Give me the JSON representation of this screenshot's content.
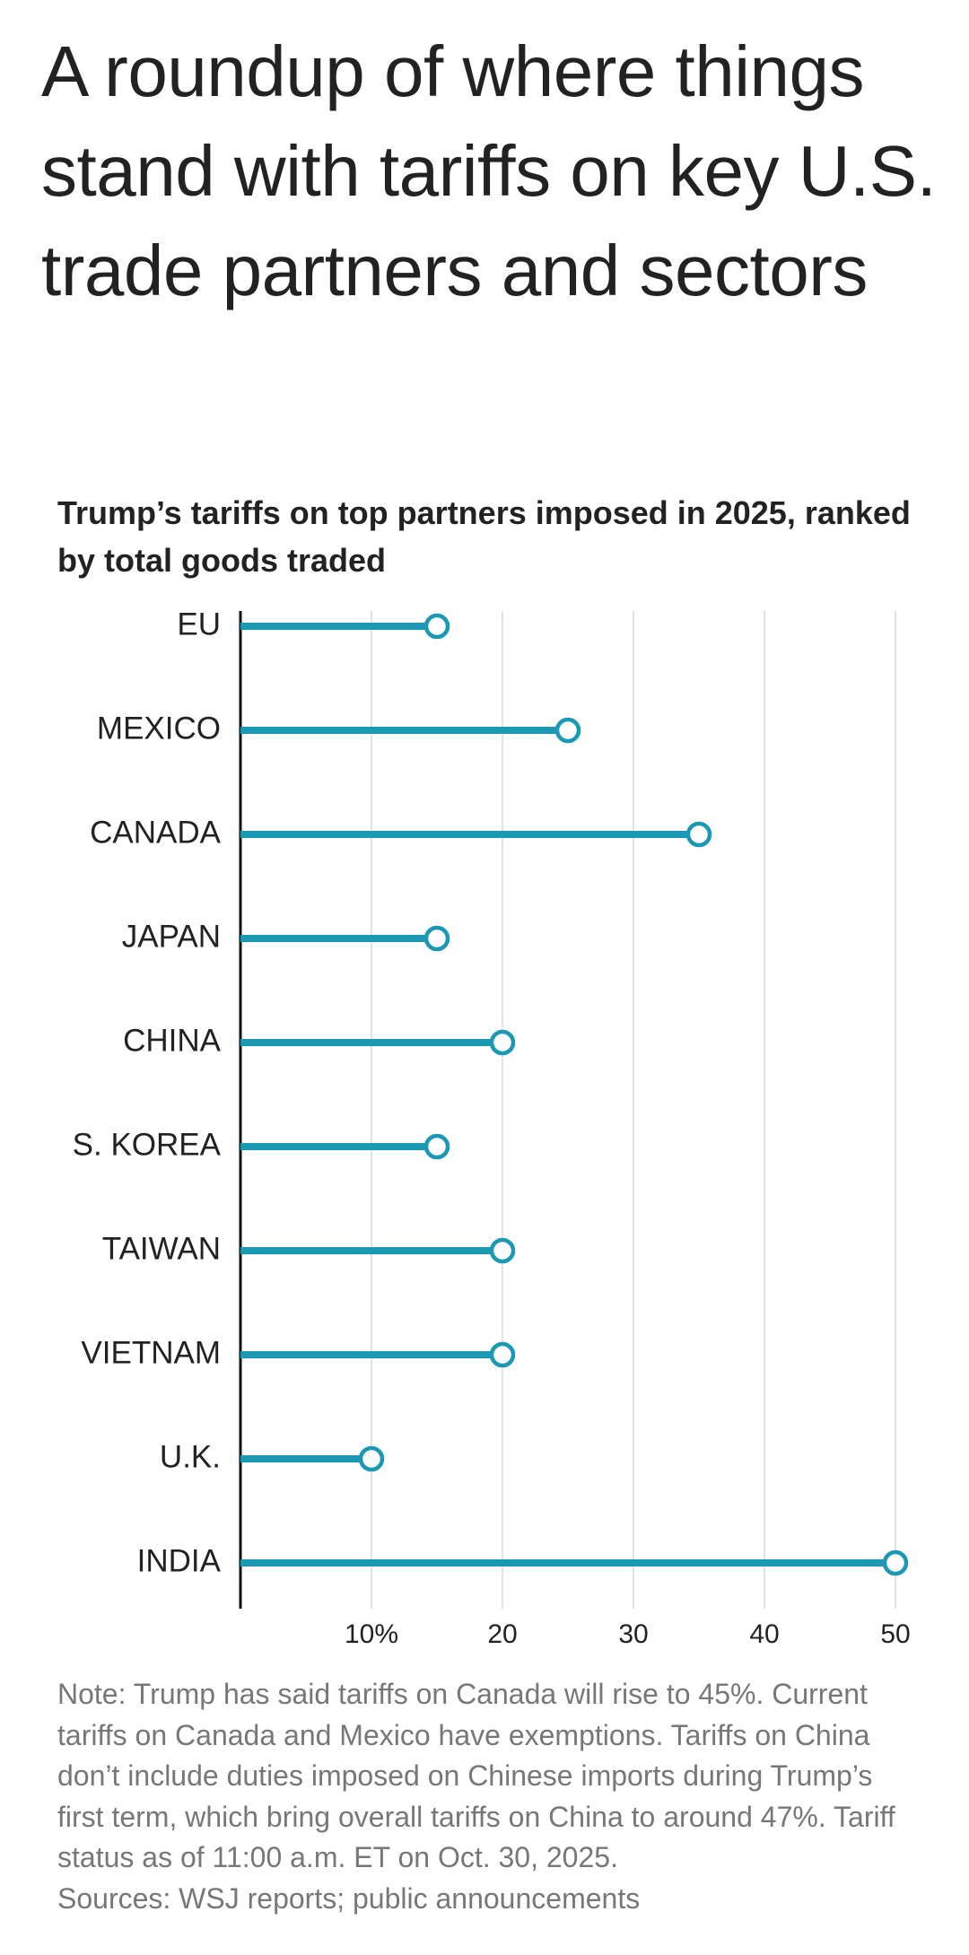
{
  "title": "A roundup of where things stand with tariffs on key U.S. trade partners and sectors",
  "chart_data": {
    "type": "lollipop",
    "orientation": "horizontal",
    "title": "Trump’s tariffs on top partners imposed in 2025, ranked by total goods traded",
    "categories": [
      "EU",
      "MEXICO",
      "CANADA",
      "JAPAN",
      "CHINA",
      "S. KOREA",
      "TAIWAN",
      "VIETNAM",
      "U.K.",
      "INDIA"
    ],
    "values": [
      15,
      25,
      35,
      15,
      20,
      15,
      20,
      20,
      10,
      50
    ],
    "color": "#1b98b3",
    "xlim": [
      0,
      50
    ],
    "xticks": [
      {
        "value": 10,
        "label": "10%"
      },
      20,
      30,
      40,
      50
    ],
    "grid": true,
    "note": "Note: Trump has said tariffs on Canada will rise to 45%. Current tariffs on Canada and Mexico have exemptions. Tariffs on China don’t include duties imposed on Chinese imports during Trump’s first term, which bring overall tariffs on China to around 47%. Tariff status as of 11:00 a.m. ET on Oct. 30, 2025.",
    "source": "Sources: WSJ reports; public announcements"
  }
}
